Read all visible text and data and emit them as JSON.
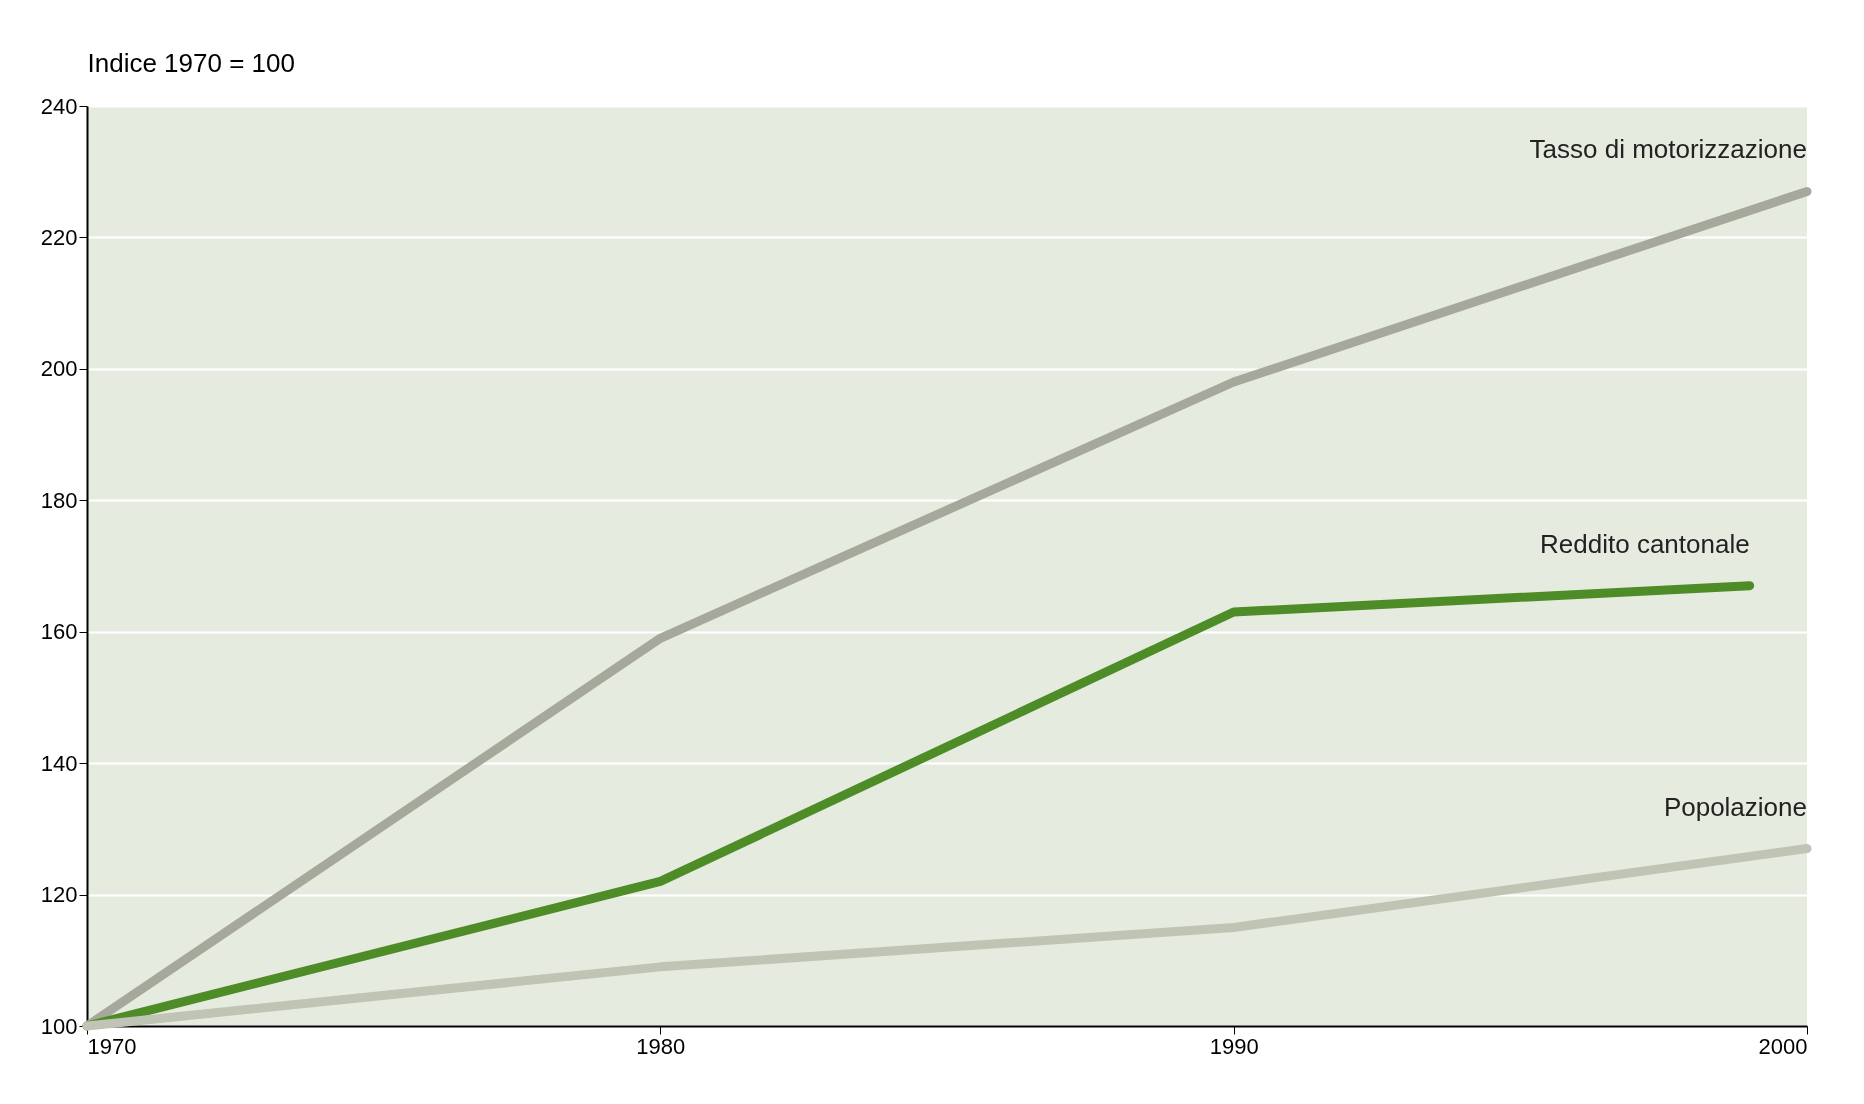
{
  "chart_data": {
    "type": "line",
    "ylabel": "Indice 1970 = 100",
    "xlim": [
      1970,
      2000
    ],
    "xticks": [
      1970,
      1980,
      1990,
      2000
    ],
    "ylim": [
      100,
      240
    ],
    "yticks": [
      100,
      120,
      140,
      160,
      180,
      200,
      220,
      240
    ],
    "grid": "y",
    "series": [
      {
        "name": "Tasso di motorizzazione",
        "color": "#a5a89a",
        "x": [
          1970,
          1980,
          1990,
          2000
        ],
        "values": [
          100,
          159,
          198,
          227
        ]
      },
      {
        "name": "Reddito cantonale",
        "color": "#4e8c28",
        "x": [
          1970,
          1980,
          1990,
          1999
        ],
        "values": [
          100,
          122,
          163,
          167
        ]
      },
      {
        "name": "Popolazione",
        "color": "#c0c4b4",
        "x": [
          1970,
          1980,
          1990,
          2000
        ],
        "values": [
          100,
          109,
          115,
          127
        ]
      }
    ]
  }
}
